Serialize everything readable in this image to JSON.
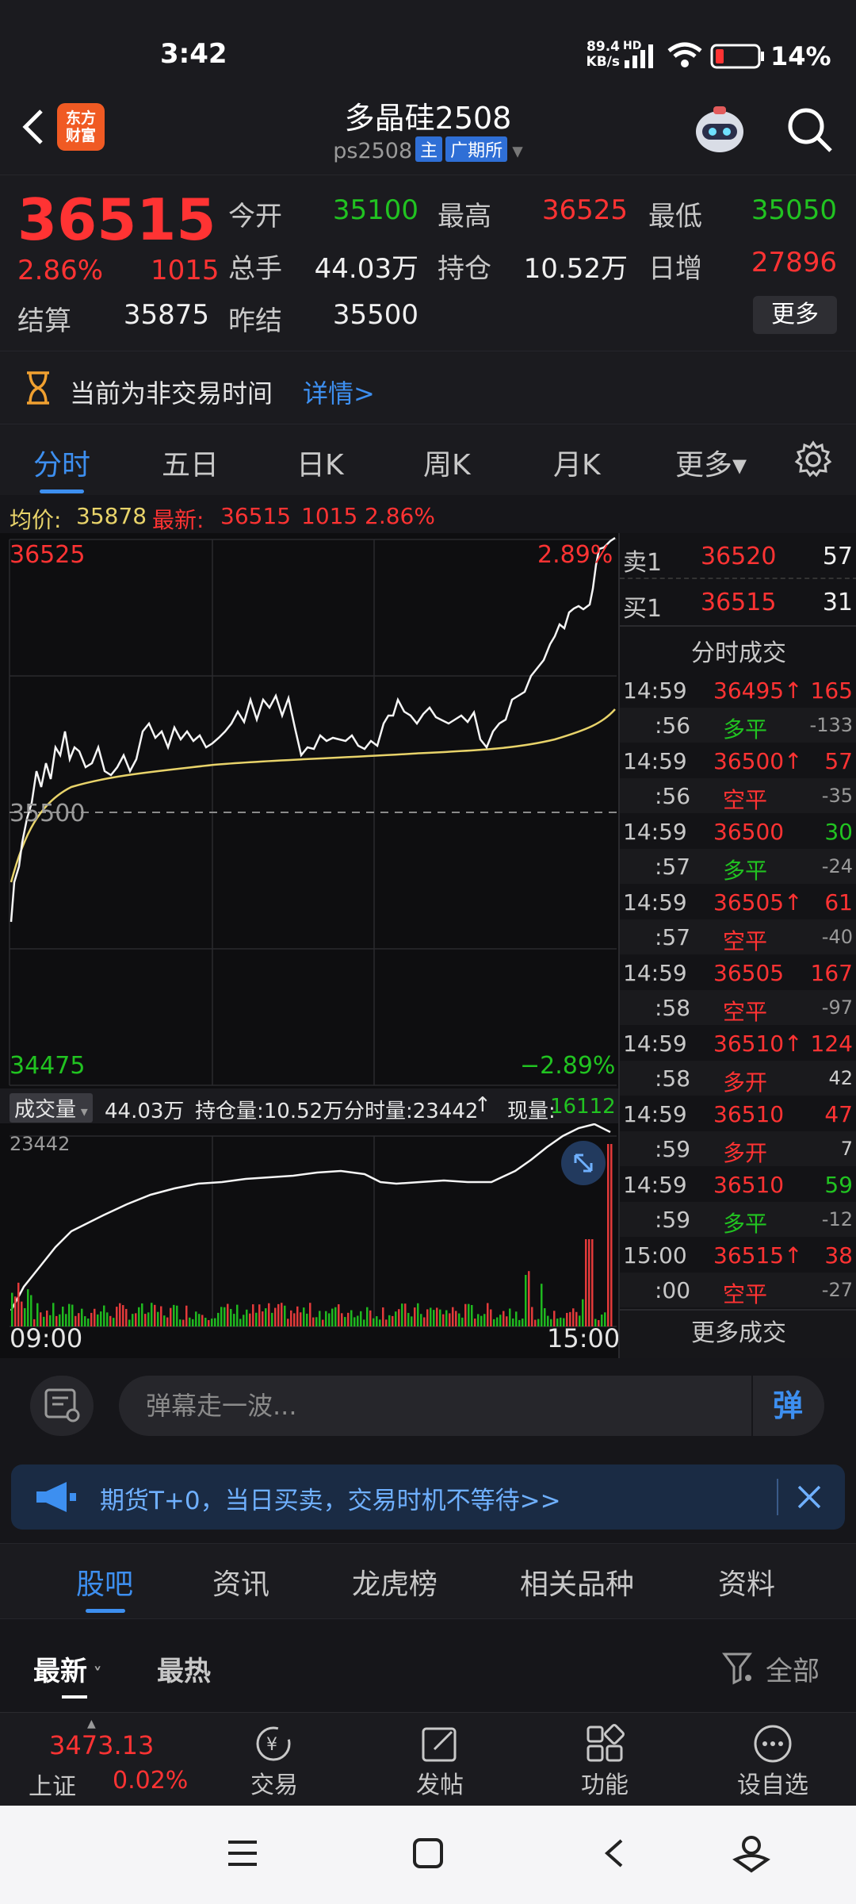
{
  "status": {
    "time": "3:42",
    "net_speed_top": "89.4",
    "net_speed_bottom": "KB/s",
    "hd": "HD",
    "battery": "14%"
  },
  "header": {
    "title": "多晶硅2508",
    "code": "ps2508",
    "tag_main": "主",
    "tag_exchange": "广期所",
    "logo_line1": "东方",
    "logo_line2": "财富"
  },
  "quote": {
    "price": "36515",
    "pct": "2.86%",
    "change": "1015",
    "open_label": "今开",
    "open": "35100",
    "high_label": "最高",
    "high": "36525",
    "low_label": "最低",
    "low": "35050",
    "vol_label": "总手",
    "vol": "44.03万",
    "oi_label": "持仓",
    "oi": "10.52万",
    "daily_inc_label": "日增",
    "daily_inc": "27896",
    "settle_label": "结算",
    "settle": "35875",
    "prev_settle_label": "昨结",
    "prev_settle": "35500",
    "more_label": "更多"
  },
  "notice": {
    "text": "当前为非交易时间",
    "link": "详情>"
  },
  "tabs": [
    {
      "label": "分时",
      "active": true
    },
    {
      "label": "五日"
    },
    {
      "label": "日K"
    },
    {
      "label": "周K"
    },
    {
      "label": "月K"
    },
    {
      "label": "更多▾"
    }
  ],
  "avgline": {
    "avg_label": "均价:",
    "avg": "35878",
    "latest_label": "最新:",
    "latest": "36515",
    "change": "1015",
    "pct": "2.86%"
  },
  "chart": {
    "top_price": "36525",
    "top_pct": "2.89%",
    "bottom_price": "34475",
    "bottom_pct": "−2.89%",
    "mid_price": "35500",
    "vol_dropdown": "成交量",
    "vol_total": "44.03万",
    "oi_text": "持仓量:10.52万",
    "tick_vol": "分时量:23442",
    "tick_arrow": "↑",
    "now_vol_label": "现量:",
    "now_vol": "16112",
    "vol_max": "23442",
    "time_start": "09:00",
    "time_end": "15:00"
  },
  "orderbook": {
    "ask_label": "卖1",
    "ask_price": "36520",
    "ask_vol": "57",
    "bid_label": "买1",
    "bid_price": "36515",
    "bid_vol": "31",
    "trades_title": "分时成交",
    "more_trades": "更多成交"
  },
  "trades": [
    {
      "time": "14:59",
      "price": "36495↑",
      "vol": "165",
      "sub_time": ":56",
      "type": "多平",
      "type_color": "#21c321",
      "delta": "-133",
      "delta_color": "#9a9a9a"
    },
    {
      "time": "14:59",
      "price": "36500↑",
      "vol": "57",
      "sub_time": ":56",
      "type": "空平",
      "type_color": "#ff3333",
      "delta": "-35",
      "delta_color": "#9a9a9a"
    },
    {
      "time": "14:59",
      "price": "36500",
      "vol": "30",
      "sub_time": ":57",
      "type": "多平",
      "type_color": "#21c321",
      "delta": "-24",
      "delta_color": "#9a9a9a",
      "vol_color": "#21c321"
    },
    {
      "time": "14:59",
      "price": "36505↑",
      "vol": "61",
      "sub_time": ":57",
      "type": "空平",
      "type_color": "#ff3333",
      "delta": "-40",
      "delta_color": "#9a9a9a"
    },
    {
      "time": "14:59",
      "price": "36505",
      "vol": "167",
      "sub_time": ":58",
      "type": "空平",
      "type_color": "#ff3333",
      "delta": "-97",
      "delta_color": "#9a9a9a"
    },
    {
      "time": "14:59",
      "price": "36510↑",
      "vol": "124",
      "sub_time": ":58",
      "type": "多开",
      "type_color": "#ff3333",
      "delta": "42",
      "delta_color": "#cfcfcf"
    },
    {
      "time": "14:59",
      "price": "36510",
      "vol": "47",
      "sub_time": ":59",
      "type": "多开",
      "type_color": "#ff3333",
      "delta": "7",
      "delta_color": "#cfcfcf"
    },
    {
      "time": "14:59",
      "price": "36510",
      "vol": "59",
      "sub_time": ":59",
      "type": "多平",
      "type_color": "#21c321",
      "delta": "-12",
      "delta_color": "#9a9a9a",
      "vol_color": "#21c321"
    },
    {
      "time": "15:00",
      "price": "36515↑",
      "vol": "38",
      "sub_time": ":00",
      "type": "空平",
      "type_color": "#ff3333",
      "delta": "-27",
      "delta_color": "#9a9a9a"
    }
  ],
  "danmaku": {
    "placeholder": "弹幕走一波...",
    "button": "弹"
  },
  "banner": {
    "text": "期货T+0，当日买卖，交易时机不等待>>"
  },
  "section_tabs": [
    "股吧",
    "资讯",
    "龙虎榜",
    "相关品种",
    "资料"
  ],
  "sort": {
    "latest": "最新",
    "hot": "最热",
    "filter": "全部"
  },
  "bottom_nav": {
    "index_value": "3473.13",
    "index_name": "上证",
    "index_pct": "0.02%",
    "items": [
      "交易",
      "发帖",
      "功能",
      "设自选"
    ]
  },
  "colors": {
    "up": "#ff3333",
    "down": "#21c321",
    "accent": "#3d8ff0",
    "avg_line": "#e8d36a"
  }
}
